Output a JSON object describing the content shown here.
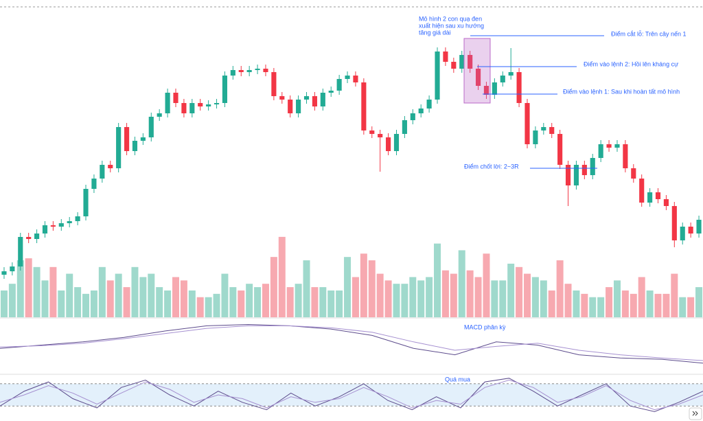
{
  "chart_data": [
    {
      "type": "candlestick",
      "open": [
        0,
        5,
        12,
        55,
        52,
        60,
        72,
        70,
        75,
        78,
        85,
        125,
        140,
        160,
        155,
        215,
        180,
        195,
        200,
        230,
        235,
        265,
        250,
        235,
        250,
        245,
        248,
        250,
        290,
        298,
        295,
        298,
        300,
        295,
        260,
        255,
        235,
        255,
        260,
        245,
        265,
        268,
        285,
        290,
        280,
        210,
        205,
        200,
        180,
        205,
        225,
        235,
        242,
        255,
        325,
        310,
        300,
        320,
        300,
        275,
        262,
        280,
        290,
        295,
        250,
        190,
        210,
        215,
        205,
        160,
        130,
        160,
        145,
        170,
        190,
        185,
        190,
        155,
        140,
        105,
        120,
        110,
        100,
        50,
        70,
        60
      ],
      "high": [
        11,
        18,
        61,
        61,
        66,
        78,
        78,
        81,
        84,
        91,
        131,
        146,
        166,
        166,
        221,
        221,
        201,
        206,
        236,
        241,
        271,
        271,
        256,
        256,
        256,
        254,
        256,
        296,
        304,
        304,
        304,
        306,
        306,
        301,
        266,
        261,
        261,
        266,
        266,
        271,
        274,
        291,
        296,
        296,
        286,
        216,
        211,
        206,
        211,
        231,
        241,
        248,
        261,
        331,
        331,
        316,
        326,
        326,
        306,
        281,
        286,
        296,
        330,
        301,
        256,
        216,
        221,
        221,
        211,
        166,
        166,
        166,
        176,
        196,
        196,
        196,
        196,
        161,
        146,
        126,
        126,
        116,
        106,
        76,
        76,
        86
      ],
      "low": [
        -6,
        -1,
        6,
        46,
        46,
        54,
        64,
        64,
        69,
        72,
        79,
        119,
        134,
        149,
        149,
        174,
        174,
        189,
        194,
        224,
        229,
        244,
        229,
        229,
        239,
        239,
        242,
        244,
        284,
        289,
        289,
        292,
        289,
        254,
        249,
        229,
        229,
        249,
        239,
        239,
        259,
        262,
        279,
        274,
        204,
        199,
        150,
        174,
        174,
        199,
        219,
        229,
        236,
        249,
        304,
        294,
        294,
        294,
        269,
        256,
        256,
        274,
        284,
        244,
        184,
        184,
        204,
        199,
        154,
        100,
        124,
        139,
        139,
        164,
        179,
        179,
        149,
        134,
        99,
        99,
        104,
        94,
        40,
        44,
        54,
        54
      ],
      "close": [
        5,
        12,
        55,
        52,
        60,
        72,
        70,
        75,
        78,
        85,
        125,
        140,
        160,
        155,
        215,
        180,
        195,
        200,
        230,
        235,
        265,
        250,
        235,
        250,
        245,
        248,
        250,
        290,
        298,
        295,
        298,
        300,
        295,
        260,
        255,
        235,
        255,
        260,
        245,
        265,
        268,
        285,
        290,
        280,
        210,
        205,
        200,
        180,
        205,
        225,
        235,
        242,
        255,
        325,
        310,
        300,
        320,
        300,
        275,
        262,
        280,
        290,
        295,
        250,
        190,
        210,
        215,
        205,
        160,
        130,
        160,
        145,
        170,
        190,
        185,
        190,
        155,
        140,
        105,
        120,
        110,
        100,
        50,
        70,
        60,
        80
      ],
      "volume": [
        40,
        50,
        85,
        88,
        75,
        55,
        75,
        40,
        65,
        45,
        35,
        40,
        75,
        55,
        65,
        45,
        75,
        60,
        65,
        45,
        40,
        60,
        55,
        40,
        30,
        30,
        35,
        65,
        45,
        40,
        50,
        45,
        50,
        90,
        120,
        45,
        50,
        85,
        45,
        45,
        40,
        40,
        90,
        60,
        95,
        85,
        65,
        55,
        50,
        50,
        60,
        55,
        60,
        110,
        70,
        65,
        100,
        70,
        60,
        95,
        55,
        55,
        80,
        75,
        65,
        60,
        55,
        40,
        85,
        50,
        40,
        35,
        30,
        30,
        45,
        55,
        40,
        35,
        60,
        40,
        35,
        35,
        65,
        30,
        30,
        45
      ],
      "ylim": [
        -60,
        400
      ],
      "volume_ylim": [
        0,
        125
      ],
      "up_color": "#22ab94",
      "down_color": "#f23645",
      "volume_up_color": "#9fd9cc",
      "volume_down_color": "#f7a9b0",
      "annotations": {
        "pattern": [
          "Mô hình 2 con quạ đen",
          "xuất hiện sau xu hướng",
          "tăng giá dài"
        ],
        "stop_loss": "Điểm cắt lỗ: Trên cây nến 1",
        "entry_2": "Điểm vào lệnh 2: Hồi lên kháng cự",
        "entry_1": "Điểm vào lệnh 1: Sau khi hoàn tất mô hình",
        "take_profit": "Điểm chốt lời: 2~3R"
      }
    },
    {
      "type": "line",
      "annotation": "MACD phân kỳ",
      "ylim": [
        -40,
        40
      ],
      "series": [
        {
          "color": "#5b4a8b",
          "values": [
            -5,
            0,
            5,
            12,
            22,
            30,
            32,
            30,
            25,
            15,
            -5,
            -15,
            5,
            0,
            -15,
            -20,
            -22,
            -28
          ]
        },
        {
          "color": "#a58fd0",
          "values": [
            -3,
            -1,
            3,
            10,
            18,
            26,
            30,
            30,
            27,
            20,
            5,
            -8,
            -2,
            3,
            -8,
            -15,
            -20,
            -24
          ]
        }
      ]
    },
    {
      "type": "line",
      "annotation": "Quá mua",
      "ylim": [
        0,
        100
      ],
      "band": [
        20,
        80
      ],
      "band_color": "#e3f0fb",
      "series": [
        {
          "color": "#5b4a8b",
          "values": [
            20,
            60,
            85,
            40,
            15,
            70,
            90,
            50,
            20,
            60,
            30,
            10,
            55,
            20,
            45,
            80,
            35,
            10,
            45,
            15,
            85,
            95,
            60,
            20,
            50,
            80,
            20,
            5,
            30,
            60
          ]
        },
        {
          "color": "#a58fd0",
          "values": [
            30,
            50,
            75,
            55,
            25,
            55,
            85,
            65,
            30,
            50,
            40,
            15,
            45,
            30,
            40,
            70,
            45,
            15,
            35,
            25,
            70,
            90,
            70,
            30,
            45,
            75,
            35,
            10,
            25,
            50
          ]
        }
      ]
    }
  ]
}
